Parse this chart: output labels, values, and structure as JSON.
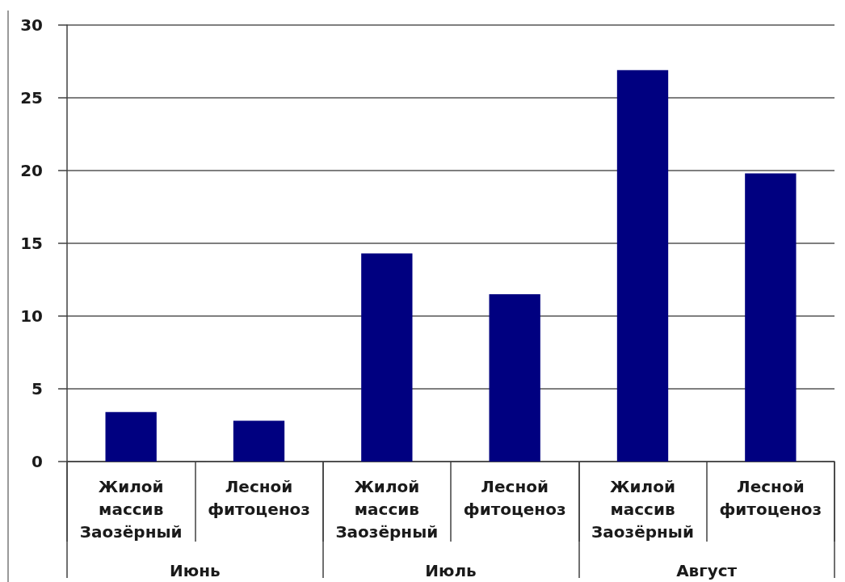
{
  "chart_data": {
    "type": "bar",
    "categories": [
      "Жилой массив Заозёрный",
      "Лесной фитоценоз",
      "Жилой массив Заозёрный",
      "Лесной фитоценоз",
      "Жилой массив Заозёрный",
      "Лесной фитоценоз"
    ],
    "values": [
      3.4,
      2.8,
      14.3,
      11.5,
      26.9,
      19.8
    ],
    "color": "#000080",
    "ylim": [
      0,
      30
    ],
    "yticks": [
      0,
      5,
      10,
      15,
      20,
      25,
      30
    ],
    "grid": "y",
    "annotations": [
      "Июнь",
      "Июль",
      "Август"
    ]
  }
}
